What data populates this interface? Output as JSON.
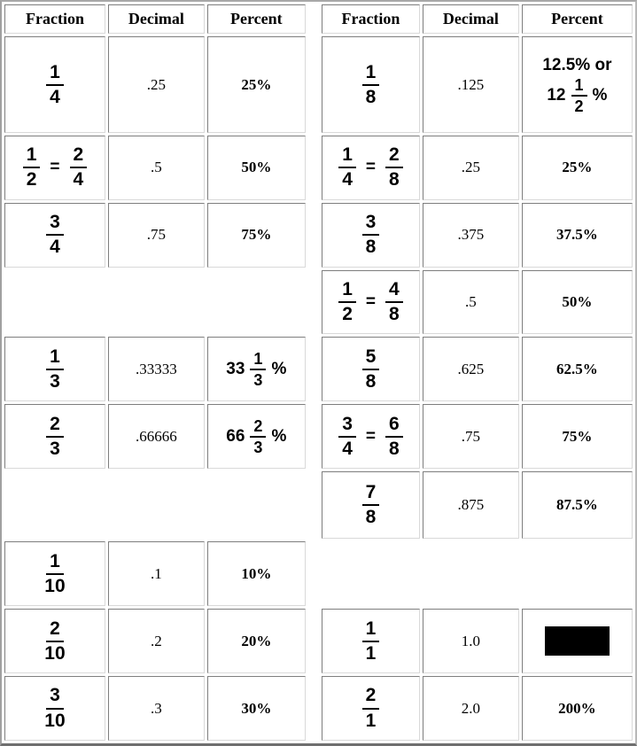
{
  "page": {
    "background": "#ffffff",
    "outer_border_color": "#a0a0a0",
    "cell_border_dark": "#7e7e7e",
    "cell_border_light": "#d9d9d9",
    "redaction_color": "#000000"
  },
  "grid": {
    "equals_sign": "=",
    "rows": [
      {
        "kind": "header",
        "cells": [
          {
            "type": "header",
            "text": "Fraction"
          },
          {
            "type": "header",
            "text": "Decimal"
          },
          {
            "type": "header",
            "text": "Percent"
          },
          {
            "type": "spacer"
          },
          {
            "type": "header",
            "text": "Fraction"
          },
          {
            "type": "header",
            "text": "Decimal"
          },
          {
            "type": "header",
            "text": "Percent"
          }
        ]
      },
      {
        "kind": "data",
        "cells": [
          {
            "type": "fraction",
            "parts": [
              {
                "num": "1",
                "den": "4"
              }
            ]
          },
          {
            "type": "decimal",
            "text": ".25"
          },
          {
            "type": "percent",
            "text": "25%"
          },
          {
            "type": "spacer"
          },
          {
            "type": "fraction",
            "parts": [
              {
                "num": "1",
                "den": "8"
              }
            ]
          },
          {
            "type": "decimal",
            "text": ".125"
          },
          {
            "type": "pmix",
            "line1": "12.5% or",
            "pre": "12",
            "num": "1",
            "den": "2",
            "post": "%"
          }
        ]
      },
      {
        "kind": "data",
        "cells": [
          {
            "type": "fraction",
            "parts": [
              {
                "num": "1",
                "den": "2"
              },
              {
                "num": "2",
                "den": "4"
              }
            ]
          },
          {
            "type": "decimal",
            "text": ".5"
          },
          {
            "type": "percent",
            "text": "50%"
          },
          {
            "type": "spacer"
          },
          {
            "type": "fraction",
            "parts": [
              {
                "num": "1",
                "den": "4"
              },
              {
                "num": "2",
                "den": "8"
              }
            ]
          },
          {
            "type": "decimal",
            "text": ".25"
          },
          {
            "type": "percent",
            "text": "25%"
          }
        ]
      },
      {
        "kind": "data",
        "cells": [
          {
            "type": "fraction",
            "parts": [
              {
                "num": "3",
                "den": "4"
              }
            ]
          },
          {
            "type": "decimal",
            "text": ".75"
          },
          {
            "type": "percent",
            "text": "75%"
          },
          {
            "type": "spacer"
          },
          {
            "type": "fraction",
            "parts": [
              {
                "num": "3",
                "den": "8"
              }
            ]
          },
          {
            "type": "decimal",
            "text": ".375"
          },
          {
            "type": "percent",
            "text": "37.5%"
          }
        ]
      },
      {
        "kind": "data",
        "cells": [
          {
            "type": "empty"
          },
          {
            "type": "empty"
          },
          {
            "type": "empty"
          },
          {
            "type": "spacer"
          },
          {
            "type": "fraction",
            "parts": [
              {
                "num": "1",
                "den": "2"
              },
              {
                "num": "4",
                "den": "8"
              }
            ]
          },
          {
            "type": "decimal",
            "text": ".5"
          },
          {
            "type": "percent",
            "text": "50%"
          }
        ]
      },
      {
        "kind": "data",
        "cells": [
          {
            "type": "fraction",
            "parts": [
              {
                "num": "1",
                "den": "3"
              }
            ]
          },
          {
            "type": "decimal",
            "text": ".33333"
          },
          {
            "type": "pmix",
            "pre": "33",
            "num": "1",
            "den": "3",
            "post": "%"
          },
          {
            "type": "spacer"
          },
          {
            "type": "fraction",
            "parts": [
              {
                "num": "5",
                "den": "8"
              }
            ]
          },
          {
            "type": "decimal",
            "text": ".625"
          },
          {
            "type": "percent",
            "text": "62.5%"
          }
        ]
      },
      {
        "kind": "data",
        "cells": [
          {
            "type": "fraction",
            "parts": [
              {
                "num": "2",
                "den": "3"
              }
            ]
          },
          {
            "type": "decimal",
            "text": ".66666"
          },
          {
            "type": "pmix",
            "pre": "66",
            "num": "2",
            "den": "3",
            "post": "%"
          },
          {
            "type": "spacer"
          },
          {
            "type": "fraction",
            "parts": [
              {
                "num": "3",
                "den": "4"
              },
              {
                "num": "6",
                "den": "8"
              }
            ]
          },
          {
            "type": "decimal",
            "text": ".75"
          },
          {
            "type": "percent",
            "text": "75%"
          }
        ]
      },
      {
        "kind": "data",
        "cells": [
          {
            "type": "empty"
          },
          {
            "type": "empty"
          },
          {
            "type": "empty"
          },
          {
            "type": "spacer"
          },
          {
            "type": "fraction",
            "parts": [
              {
                "num": "7",
                "den": "8"
              }
            ]
          },
          {
            "type": "decimal",
            "text": ".875"
          },
          {
            "type": "percent",
            "text": "87.5%"
          }
        ]
      },
      {
        "kind": "data",
        "cells": [
          {
            "type": "fraction",
            "parts": [
              {
                "num": "1",
                "den": "10"
              }
            ]
          },
          {
            "type": "decimal",
            "text": ".1"
          },
          {
            "type": "percent",
            "text": "10%"
          },
          {
            "type": "spacer"
          },
          {
            "type": "empty"
          },
          {
            "type": "empty"
          },
          {
            "type": "empty"
          }
        ]
      },
      {
        "kind": "data",
        "cells": [
          {
            "type": "fraction",
            "parts": [
              {
                "num": "2",
                "den": "10"
              }
            ]
          },
          {
            "type": "decimal",
            "text": ".2"
          },
          {
            "type": "percent",
            "text": "20%"
          },
          {
            "type": "spacer"
          },
          {
            "type": "fraction",
            "parts": [
              {
                "num": "1",
                "den": "1"
              }
            ]
          },
          {
            "type": "decimal",
            "text": "1.0"
          },
          {
            "type": "blackbox"
          }
        ]
      },
      {
        "kind": "data",
        "cells": [
          {
            "type": "fraction",
            "parts": [
              {
                "num": "3",
                "den": "10"
              }
            ]
          },
          {
            "type": "decimal",
            "text": ".3"
          },
          {
            "type": "percent",
            "text": "30%"
          },
          {
            "type": "spacer"
          },
          {
            "type": "fraction",
            "parts": [
              {
                "num": "2",
                "den": "1"
              }
            ]
          },
          {
            "type": "decimal",
            "text": "2.0"
          },
          {
            "type": "percent",
            "text": "200%"
          }
        ]
      }
    ]
  }
}
